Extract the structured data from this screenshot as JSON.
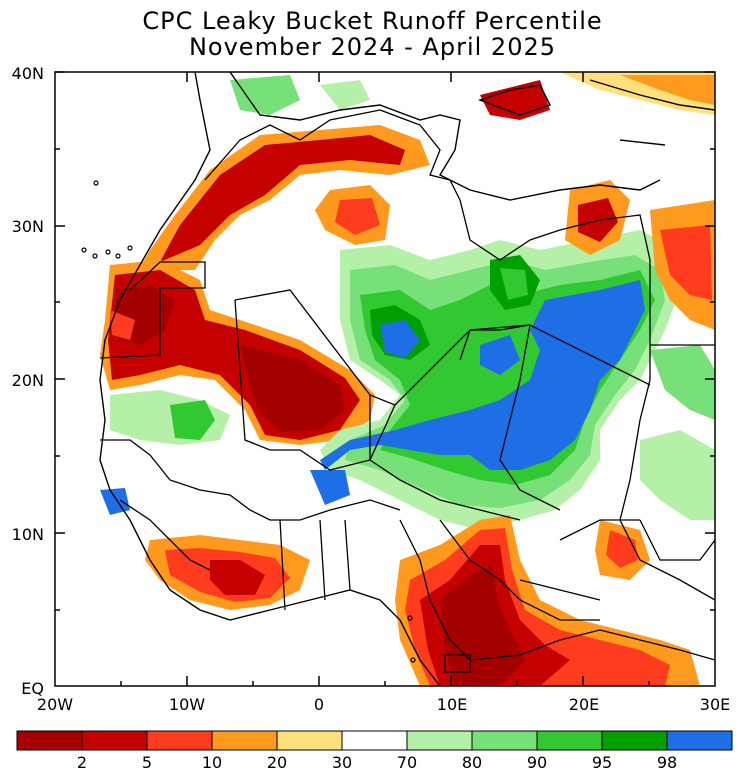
{
  "title": {
    "line1": "CPC Leaky Bucket Runoff Percentile",
    "line2": "November 2024 - April 2025"
  },
  "axes": {
    "y_ticks": [
      "40N",
      "30N",
      "20N",
      "10N",
      "EQ"
    ],
    "x_ticks": [
      "20W",
      "10W",
      "0",
      "10E",
      "20E",
      "30E"
    ],
    "lon_range": [
      -20,
      30
    ],
    "lat_range": [
      0,
      40
    ]
  },
  "colorbar": {
    "labels": [
      "2",
      "5",
      "10",
      "20",
      "30",
      "70",
      "80",
      "90",
      "95",
      "98"
    ],
    "colors": [
      "#a50000",
      "#c40000",
      "#ff3c1e",
      "#ff9a1e",
      "#ffe07a",
      "#ffffff",
      "#b4f0a8",
      "#78e078",
      "#32c832",
      "#00a000",
      "#1e6ee6"
    ]
  }
}
